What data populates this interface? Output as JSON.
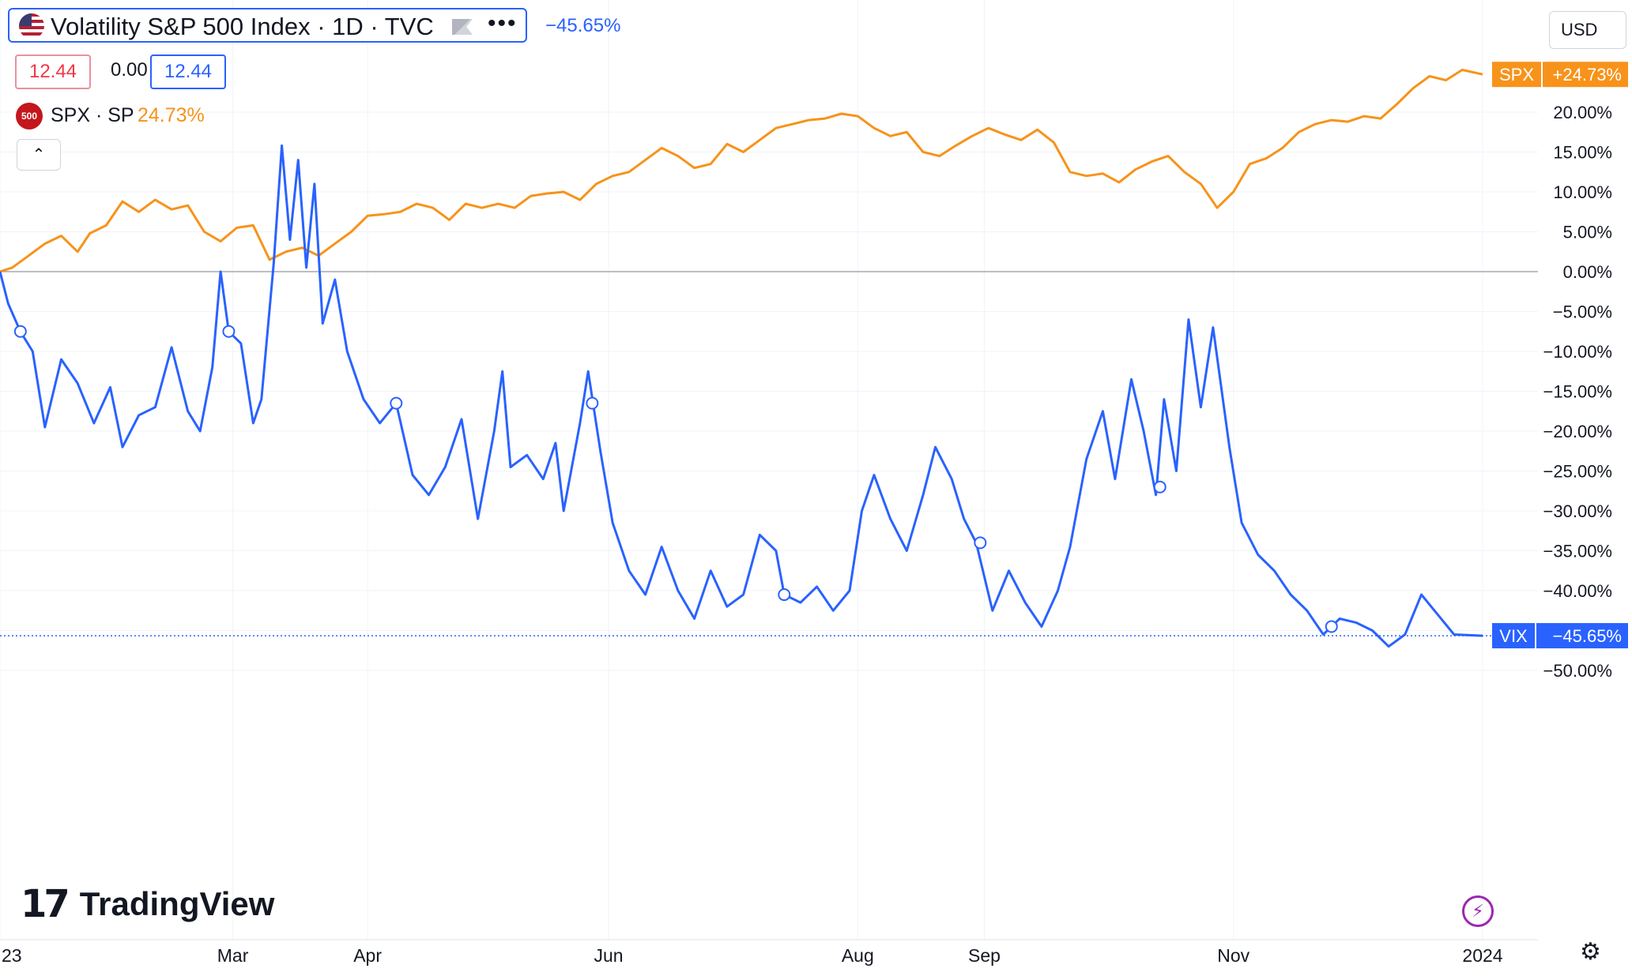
{
  "header": {
    "title": "Volatility S&P 500 Index · 1D · TVC",
    "change": "−45.65%",
    "values": {
      "open": "12.44",
      "mid": "0.00",
      "close": "12.44"
    },
    "compare": {
      "symbol": "SPX · SP",
      "logo_text": "500",
      "change": "24.73%"
    },
    "currency": "USD",
    "collapse_glyph": "⌃",
    "more_glyph": "•••"
  },
  "branding": {
    "logo_text": "TradingView",
    "logo_mark": "17"
  },
  "colors": {
    "spx": "#f7931a",
    "vix": "#2962ff",
    "grid": "#f0f3fa",
    "zero": "#9598a1"
  },
  "chart_data": {
    "type": "line",
    "y_unit": "percent",
    "ylim": [
      -50,
      25
    ],
    "y_ticks": [
      "20.00%",
      "15.00%",
      "10.00%",
      "5.00%",
      "0.00%",
      "−5.00%",
      "−10.00%",
      "−15.00%",
      "−20.00%",
      "−25.00%",
      "−30.00%",
      "−35.00%",
      "−40.00%",
      "−45.00%",
      "−50.00%"
    ],
    "y_tick_values": [
      20,
      15,
      10,
      5,
      0,
      -5,
      -10,
      -15,
      -20,
      -25,
      -30,
      -35,
      -40,
      -45,
      -50
    ],
    "x_ticks": [
      "23",
      "Mar",
      "Apr",
      "Jun",
      "Aug",
      "Sep",
      "Nov",
      "2024"
    ],
    "x_tick_dates": [
      "2023-01-03",
      "2023-03-01",
      "2023-04-03",
      "2023-06-01",
      "2023-08-01",
      "2023-09-01",
      "2023-11-01",
      "2024-01-01"
    ],
    "x_range": [
      "2023-01-03",
      "2024-01-01"
    ],
    "series": [
      {
        "name": "SPX",
        "label": "SPX",
        "last_label": "+24.73%",
        "points": [
          [
            "2023-01-03",
            0.0
          ],
          [
            "2023-01-06",
            0.5
          ],
          [
            "2023-01-10",
            2.0
          ],
          [
            "2023-01-14",
            3.5
          ],
          [
            "2023-01-18",
            4.5
          ],
          [
            "2023-01-22",
            2.5
          ],
          [
            "2023-01-25",
            4.8
          ],
          [
            "2023-01-29",
            5.8
          ],
          [
            "2023-02-02",
            8.8
          ],
          [
            "2023-02-06",
            7.5
          ],
          [
            "2023-02-10",
            9.0
          ],
          [
            "2023-02-14",
            7.8
          ],
          [
            "2023-02-18",
            8.3
          ],
          [
            "2023-02-22",
            5.0
          ],
          [
            "2023-02-26",
            3.8
          ],
          [
            "2023-03-02",
            5.5
          ],
          [
            "2023-03-06",
            5.8
          ],
          [
            "2023-03-10",
            1.5
          ],
          [
            "2023-03-14",
            2.5
          ],
          [
            "2023-03-18",
            3.0
          ],
          [
            "2023-03-22",
            2.0
          ],
          [
            "2023-03-26",
            3.5
          ],
          [
            "2023-03-30",
            5.0
          ],
          [
            "2023-04-03",
            7.0
          ],
          [
            "2023-04-07",
            7.2
          ],
          [
            "2023-04-11",
            7.5
          ],
          [
            "2023-04-15",
            8.5
          ],
          [
            "2023-04-19",
            8.0
          ],
          [
            "2023-04-23",
            6.5
          ],
          [
            "2023-04-27",
            8.5
          ],
          [
            "2023-05-01",
            8.0
          ],
          [
            "2023-05-05",
            8.5
          ],
          [
            "2023-05-09",
            8.0
          ],
          [
            "2023-05-13",
            9.5
          ],
          [
            "2023-05-17",
            9.8
          ],
          [
            "2023-05-21",
            10.0
          ],
          [
            "2023-05-25",
            9.0
          ],
          [
            "2023-05-29",
            11.0
          ],
          [
            "2023-06-02",
            12.0
          ],
          [
            "2023-06-06",
            12.5
          ],
          [
            "2023-06-10",
            14.0
          ],
          [
            "2023-06-14",
            15.5
          ],
          [
            "2023-06-18",
            14.5
          ],
          [
            "2023-06-22",
            13.0
          ],
          [
            "2023-06-26",
            13.5
          ],
          [
            "2023-06-30",
            16.0
          ],
          [
            "2023-07-04",
            15.0
          ],
          [
            "2023-07-08",
            16.5
          ],
          [
            "2023-07-12",
            18.0
          ],
          [
            "2023-07-16",
            18.5
          ],
          [
            "2023-07-20",
            19.0
          ],
          [
            "2023-07-24",
            19.2
          ],
          [
            "2023-07-28",
            19.8
          ],
          [
            "2023-08-01",
            19.5
          ],
          [
            "2023-08-05",
            18.0
          ],
          [
            "2023-08-09",
            17.0
          ],
          [
            "2023-08-13",
            17.5
          ],
          [
            "2023-08-17",
            15.0
          ],
          [
            "2023-08-21",
            14.5
          ],
          [
            "2023-08-25",
            15.8
          ],
          [
            "2023-08-29",
            17.0
          ],
          [
            "2023-09-02",
            18.0
          ],
          [
            "2023-09-06",
            17.2
          ],
          [
            "2023-09-10",
            16.5
          ],
          [
            "2023-09-14",
            17.8
          ],
          [
            "2023-09-18",
            16.2
          ],
          [
            "2023-09-22",
            12.5
          ],
          [
            "2023-09-26",
            12.0
          ],
          [
            "2023-09-30",
            12.3
          ],
          [
            "2023-10-04",
            11.2
          ],
          [
            "2023-10-08",
            12.8
          ],
          [
            "2023-10-12",
            13.8
          ],
          [
            "2023-10-16",
            14.5
          ],
          [
            "2023-10-20",
            12.5
          ],
          [
            "2023-10-24",
            11.0
          ],
          [
            "2023-10-28",
            8.0
          ],
          [
            "2023-11-01",
            10.0
          ],
          [
            "2023-11-05",
            13.5
          ],
          [
            "2023-11-09",
            14.2
          ],
          [
            "2023-11-13",
            15.5
          ],
          [
            "2023-11-17",
            17.5
          ],
          [
            "2023-11-21",
            18.5
          ],
          [
            "2023-11-25",
            19.0
          ],
          [
            "2023-11-29",
            18.8
          ],
          [
            "2023-12-03",
            19.5
          ],
          [
            "2023-12-07",
            19.2
          ],
          [
            "2023-12-11",
            21.0
          ],
          [
            "2023-12-15",
            23.0
          ],
          [
            "2023-12-19",
            24.5
          ],
          [
            "2023-12-23",
            24.0
          ],
          [
            "2023-12-27",
            25.3
          ],
          [
            "2024-01-01",
            24.73
          ]
        ]
      },
      {
        "name": "VIX",
        "label": "VIX",
        "last_label": "−45.65%",
        "points": [
          [
            "2023-01-03",
            0.0
          ],
          [
            "2023-01-05",
            -4.0
          ],
          [
            "2023-01-08",
            -7.5
          ],
          [
            "2023-01-11",
            -10.0
          ],
          [
            "2023-01-14",
            -19.5
          ],
          [
            "2023-01-18",
            -11.0
          ],
          [
            "2023-01-22",
            -14.0
          ],
          [
            "2023-01-26",
            -19.0
          ],
          [
            "2023-01-30",
            -14.5
          ],
          [
            "2023-02-02",
            -22.0
          ],
          [
            "2023-02-06",
            -18.0
          ],
          [
            "2023-02-10",
            -17.0
          ],
          [
            "2023-02-14",
            -9.5
          ],
          [
            "2023-02-18",
            -17.5
          ],
          [
            "2023-02-21",
            -20.0
          ],
          [
            "2023-02-24",
            -12.0
          ],
          [
            "2023-02-26",
            0.0
          ],
          [
            "2023-02-28",
            -7.5
          ],
          [
            "2023-03-03",
            -9.0
          ],
          [
            "2023-03-06",
            -19.0
          ],
          [
            "2023-03-08",
            -16.0
          ],
          [
            "2023-03-11",
            1.0
          ],
          [
            "2023-03-13",
            15.8
          ],
          [
            "2023-03-15",
            4.0
          ],
          [
            "2023-03-17",
            14.0
          ],
          [
            "2023-03-19",
            0.5
          ],
          [
            "2023-03-21",
            11.0
          ],
          [
            "2023-03-23",
            -6.5
          ],
          [
            "2023-03-26",
            -1.0
          ],
          [
            "2023-03-29",
            -10.0
          ],
          [
            "2023-04-02",
            -16.0
          ],
          [
            "2023-04-06",
            -19.0
          ],
          [
            "2023-04-10",
            -16.5
          ],
          [
            "2023-04-14",
            -25.5
          ],
          [
            "2023-04-18",
            -28.0
          ],
          [
            "2023-04-22",
            -24.5
          ],
          [
            "2023-04-26",
            -18.5
          ],
          [
            "2023-04-30",
            -31.0
          ],
          [
            "2023-05-04",
            -20.0
          ],
          [
            "2023-05-06",
            -12.5
          ],
          [
            "2023-05-08",
            -24.5
          ],
          [
            "2023-05-12",
            -23.0
          ],
          [
            "2023-05-16",
            -26.0
          ],
          [
            "2023-05-19",
            -21.5
          ],
          [
            "2023-05-21",
            -30.0
          ],
          [
            "2023-05-25",
            -19.0
          ],
          [
            "2023-05-27",
            -12.5
          ],
          [
            "2023-05-30",
            -22.5
          ],
          [
            "2023-06-02",
            -31.5
          ],
          [
            "2023-06-06",
            -37.5
          ],
          [
            "2023-06-10",
            -40.5
          ],
          [
            "2023-06-14",
            -34.5
          ],
          [
            "2023-06-18",
            -40.0
          ],
          [
            "2023-06-22",
            -43.5
          ],
          [
            "2023-06-26",
            -37.5
          ],
          [
            "2023-06-30",
            -42.0
          ],
          [
            "2023-07-04",
            -40.5
          ],
          [
            "2023-07-08",
            -33.0
          ],
          [
            "2023-07-12",
            -35.0
          ],
          [
            "2023-07-14",
            -40.5
          ],
          [
            "2023-07-18",
            -41.5
          ],
          [
            "2023-07-22",
            -39.5
          ],
          [
            "2023-07-26",
            -42.5
          ],
          [
            "2023-07-30",
            -40.0
          ],
          [
            "2023-08-02",
            -30.0
          ],
          [
            "2023-08-05",
            -25.5
          ],
          [
            "2023-08-09",
            -31.0
          ],
          [
            "2023-08-13",
            -35.0
          ],
          [
            "2023-08-17",
            -28.0
          ],
          [
            "2023-08-20",
            -22.0
          ],
          [
            "2023-08-24",
            -26.0
          ],
          [
            "2023-08-27",
            -31.0
          ],
          [
            "2023-08-30",
            -34.0
          ],
          [
            "2023-09-03",
            -42.5
          ],
          [
            "2023-09-07",
            -37.5
          ],
          [
            "2023-09-11",
            -41.5
          ],
          [
            "2023-09-15",
            -44.5
          ],
          [
            "2023-09-19",
            -40.0
          ],
          [
            "2023-09-22",
            -34.5
          ],
          [
            "2023-09-26",
            -23.5
          ],
          [
            "2023-09-30",
            -17.5
          ],
          [
            "2023-10-03",
            -26.0
          ],
          [
            "2023-10-07",
            -13.5
          ],
          [
            "2023-10-10",
            -20.0
          ],
          [
            "2023-10-13",
            -28.0
          ],
          [
            "2023-10-15",
            -16.0
          ],
          [
            "2023-10-18",
            -25.0
          ],
          [
            "2023-10-21",
            -6.0
          ],
          [
            "2023-10-24",
            -17.0
          ],
          [
            "2023-10-27",
            -7.0
          ],
          [
            "2023-10-31",
            -22.0
          ],
          [
            "2023-11-03",
            -31.5
          ],
          [
            "2023-11-07",
            -35.5
          ],
          [
            "2023-11-11",
            -37.5
          ],
          [
            "2023-11-15",
            -40.5
          ],
          [
            "2023-11-19",
            -42.5
          ],
          [
            "2023-11-23",
            -45.5
          ],
          [
            "2023-11-27",
            -43.5
          ],
          [
            "2023-12-01",
            -44.0
          ],
          [
            "2023-12-05",
            -45.0
          ],
          [
            "2023-12-09",
            -47.0
          ],
          [
            "2023-12-13",
            -45.5
          ],
          [
            "2023-12-17",
            -40.5
          ],
          [
            "2023-12-21",
            -43.0
          ],
          [
            "2023-12-25",
            -45.5
          ],
          [
            "2024-01-01",
            -45.65
          ]
        ]
      }
    ],
    "markers": [
      [
        "2023-01-08",
        -7.5
      ],
      [
        "2023-02-28",
        -7.5
      ],
      [
        "2023-04-10",
        -16.5
      ],
      [
        "2023-05-28",
        -16.5
      ],
      [
        "2023-07-14",
        -40.5
      ],
      [
        "2023-08-31",
        -34.0
      ],
      [
        "2023-10-14",
        -27.0
      ],
      [
        "2023-11-25",
        -44.5
      ]
    ]
  }
}
